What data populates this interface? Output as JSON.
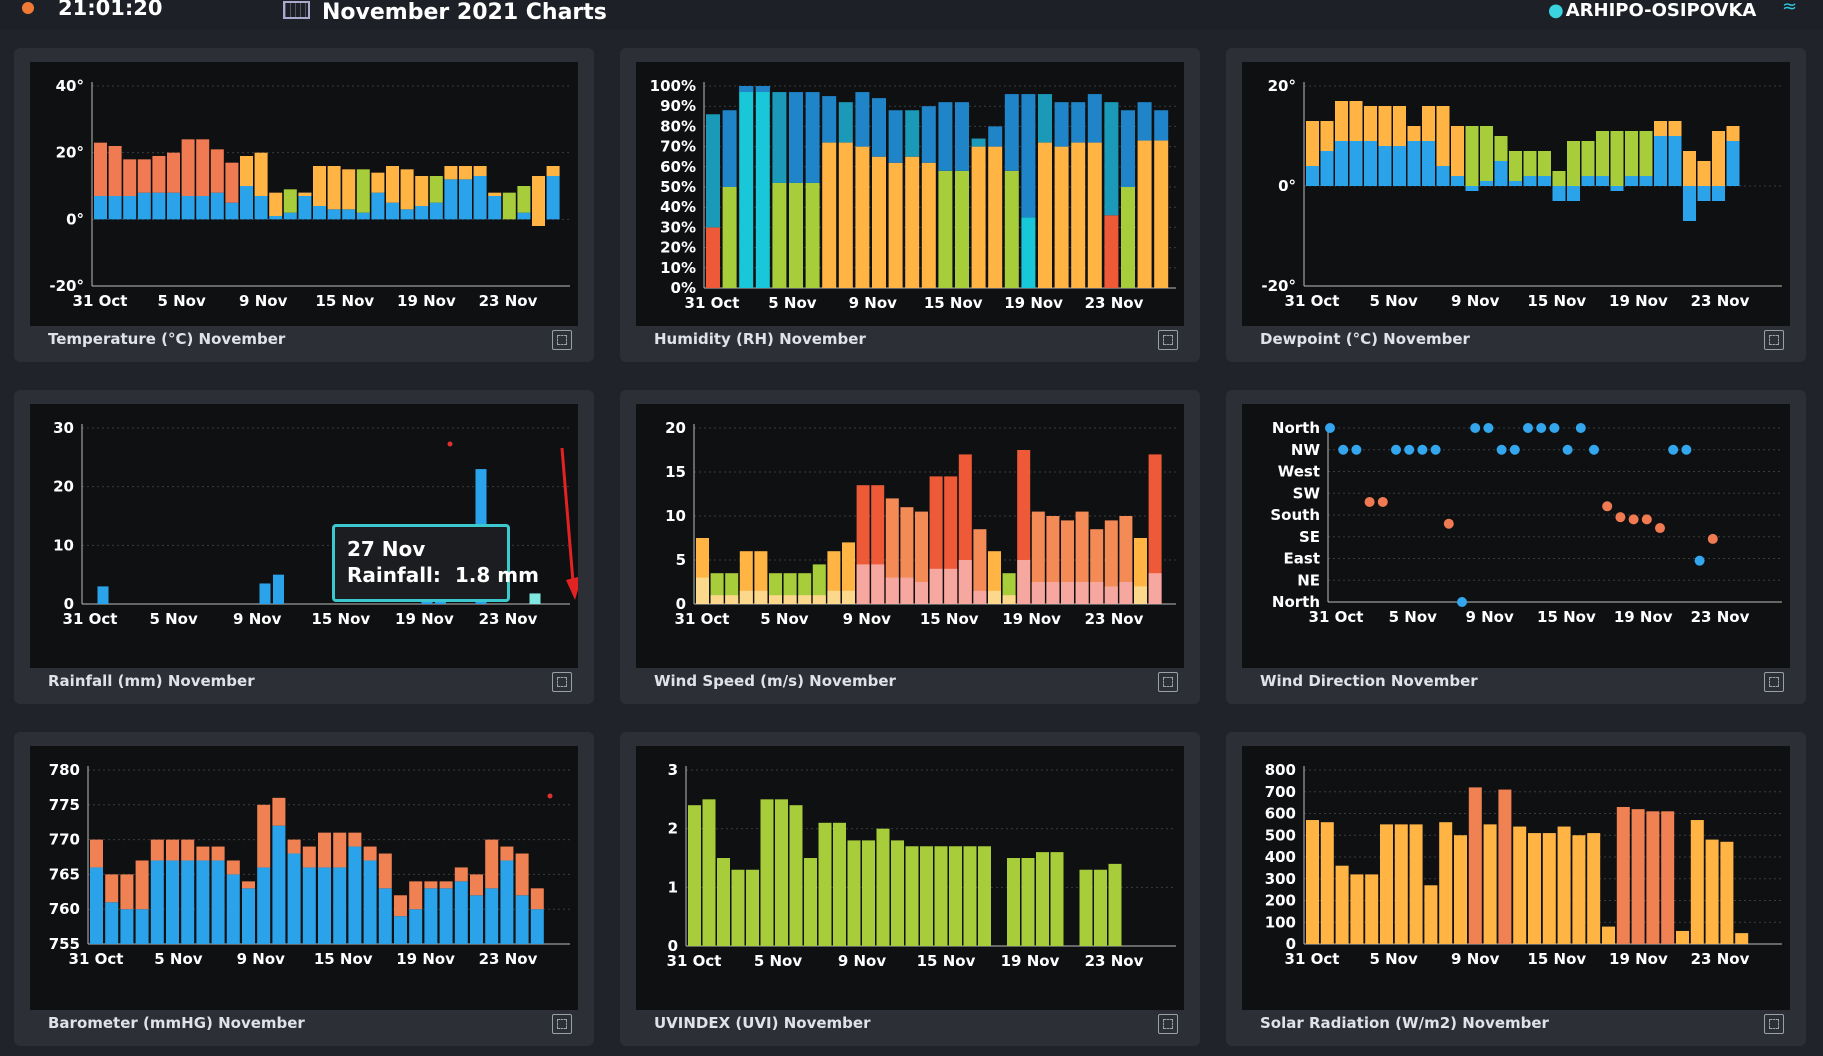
{
  "header": {
    "time": "21:01:20",
    "page_title": "November 2021 Charts",
    "location": "ARHIPO-OSIPOVKA"
  },
  "colors": {
    "blue": "#2ba3ea",
    "orange": "#ffb444",
    "coral": "#f07a52",
    "green": "#a8cd3a",
    "cyan": "#18c8d8",
    "red": "#ee5a38"
  },
  "date_ticks": [
    "31 Oct",
    "5 Nov",
    "9 Nov",
    "15 Nov",
    "19 Nov",
    "23 Nov"
  ],
  "tooltip": {
    "date": "27 Nov",
    "label": "Rainfall:",
    "value": "1.8 mm"
  },
  "cards": [
    {
      "caption": "Temperature (°C) November",
      "yticks": [
        "40°",
        "20°",
        "0°",
        "-20°"
      ]
    },
    {
      "caption": "Humidity (RH) November",
      "yticks": [
        "100%",
        "90%",
        "80%",
        "70%",
        "60%",
        "50%",
        "40%",
        "30%",
        "20%",
        "10%",
        "0%"
      ]
    },
    {
      "caption": "Dewpoint (°C) November",
      "yticks": [
        "20°",
        "0°",
        "-20°"
      ]
    },
    {
      "caption": "Rainfall (mm) November",
      "yticks": [
        "30",
        "20",
        "10",
        "0"
      ]
    },
    {
      "caption": "Wind Speed (m/s) November",
      "yticks": [
        "20",
        "15",
        "10",
        "5",
        "0"
      ]
    },
    {
      "caption": "Wind Direction November",
      "yticks": [
        "North",
        "NW",
        "West",
        "SW",
        "South",
        "SE",
        "East",
        "NE",
        "North"
      ]
    },
    {
      "caption": "Barometer (mmHG) November",
      "yticks": [
        "780",
        "775",
        "770",
        "765",
        "760",
        "755"
      ]
    },
    {
      "caption": "UVINDEX (UVI) November",
      "yticks": [
        "3",
        "2",
        "1",
        "0"
      ]
    },
    {
      "caption": "Solar Radiation (W/m2) November",
      "yticks": [
        "800",
        "700",
        "600",
        "500",
        "400",
        "300",
        "200",
        "100",
        "0"
      ]
    }
  ],
  "chart_data": [
    {
      "type": "bar",
      "ylim": [
        -20,
        40
      ],
      "series": [
        {
          "name": "",
          "values": [
            [
              0,
              7,
              23
            ],
            [
              0,
              7,
              22
            ],
            [
              0,
              7,
              18
            ],
            [
              0,
              8,
              18
            ],
            [
              0,
              8,
              19
            ],
            [
              0,
              8,
              20
            ],
            [
              0,
              7,
              24
            ],
            [
              0,
              7,
              24
            ],
            [
              0,
              8,
              21
            ],
            [
              0,
              5,
              17
            ],
            [
              0,
              10,
              19
            ],
            [
              0,
              7,
              20
            ],
            [
              0,
              1,
              8
            ],
            [
              0,
              2,
              9
            ],
            [
              0,
              8,
              7
            ],
            [
              0,
              4,
              16
            ],
            [
              0,
              3,
              16
            ],
            [
              0,
              3,
              15
            ],
            [
              0,
              2,
              15
            ],
            [
              0,
              8,
              14
            ],
            [
              0,
              5,
              16
            ],
            [
              0,
              3,
              15
            ],
            [
              0,
              4,
              13
            ],
            [
              0,
              5,
              13
            ],
            [
              0,
              12,
              16
            ],
            [
              0,
              12,
              16
            ],
            [
              0,
              13,
              16
            ],
            [
              0,
              7,
              8
            ],
            [
              0,
              0,
              8
            ],
            [
              0,
              2,
              10
            ],
            [
              0,
              -2,
              13
            ],
            [
              0,
              13,
              16
            ]
          ]
        }
      ]
    },
    {
      "type": "bar",
      "ylim": [
        0,
        100
      ]
    },
    {
      "type": "bar",
      "ylim": [
        -20,
        20
      ]
    },
    {
      "type": "bar",
      "ylim": [
        0,
        30
      ],
      "values": [
        0,
        3,
        0,
        0,
        0,
        0,
        0,
        0,
        0,
        0,
        0,
        0,
        0,
        3.5,
        5,
        0,
        0,
        0,
        0,
        0,
        0,
        0,
        0,
        0,
        0,
        2.5,
        4,
        0,
        0,
        23,
        0,
        0,
        0,
        1.8
      ]
    },
    {
      "type": "bar",
      "ylim": [
        0,
        20
      ]
    },
    {
      "type": "scatter"
    },
    {
      "type": "bar",
      "ylim": [
        755,
        780
      ]
    },
    {
      "type": "bar",
      "ylim": [
        0,
        3
      ],
      "values": [
        2.4,
        2.5,
        1.5,
        1.3,
        1.3,
        2.5,
        2.5,
        2.4,
        1.5,
        2.1,
        2.1,
        1.8,
        1.8,
        2.0,
        1.8,
        1.7,
        1.7,
        1.7,
        1.7,
        1.7,
        1.7,
        0,
        1.5,
        1.5,
        1.6,
        1.6,
        0,
        1.3,
        1.3,
        1.4
      ]
    },
    {
      "type": "bar",
      "ylim": [
        0,
        800
      ],
      "values": [
        570,
        560,
        360,
        320,
        320,
        550,
        550,
        550,
        270,
        560,
        500,
        720,
        550,
        710,
        540,
        510,
        510,
        540,
        500,
        510,
        80,
        630,
        620,
        610,
        610,
        60,
        570,
        480,
        470,
        50
      ]
    }
  ]
}
